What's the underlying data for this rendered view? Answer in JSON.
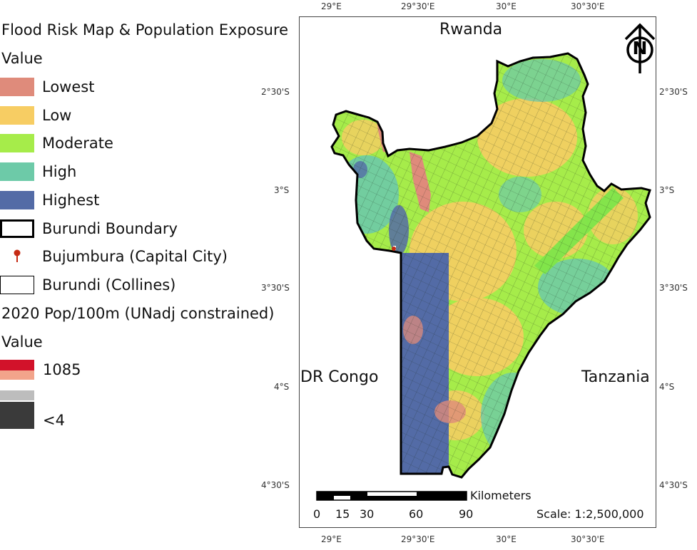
{
  "legend": {
    "title": "Flood Risk Map & Population Exposure",
    "value_label": "Value",
    "classes": [
      {
        "label": "Lowest",
        "color": "#df8b7b"
      },
      {
        "label": "Low",
        "color": "#f7cd63"
      },
      {
        "label": "Moderate",
        "color": "#a6ec4a"
      },
      {
        "label": "High",
        "color": "#6dcaa8"
      },
      {
        "label": "Highest",
        "color": "#536ba6"
      }
    ],
    "boundary_label": "Burundi Boundary",
    "capital_label": "Bujumbura (Capital City)",
    "collines_label": "Burundi (Collines)",
    "pop_title": "2020 Pop/100m (UNadj constrained)",
    "pop_value_label": "Value",
    "pop_high": "1085",
    "pop_low": "<4",
    "pop_high_color": "#d2122a",
    "pop_mid_color": "#f2a48b",
    "pop_low_color": "#3a3a3a"
  },
  "map": {
    "lon_ticks": [
      "29°E",
      "29°30'E",
      "30°E",
      "30°30'E"
    ],
    "lat_ticks": [
      "2°30'S",
      "3°S",
      "3°30'S",
      "4°S",
      "4°30'S"
    ],
    "countries": {
      "north": "Rwanda",
      "west": "DR Congo",
      "east": "Tanzania"
    },
    "north_letter": "N",
    "scale_unit": "Kilometers",
    "scale_ticks": [
      "0",
      "15",
      "30",
      "60",
      "90"
    ],
    "scale_ratio": "Scale: 1:2,500,000"
  }
}
